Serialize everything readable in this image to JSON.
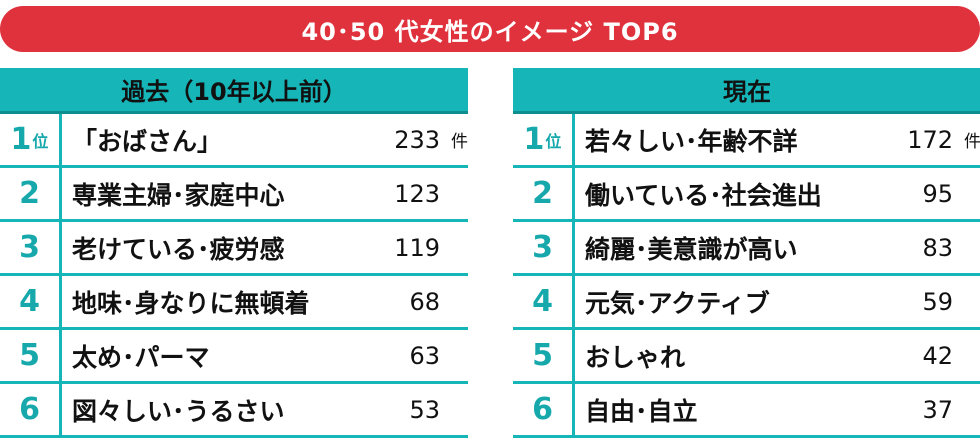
{
  "title": "40･50 代女性のイメージ TOP6",
  "chart_data": [
    {
      "type": "table",
      "title": "過去（10年以上前）",
      "rank_suffix": "位",
      "unit": "件",
      "categories": [
        "「おばさん」",
        "専業主婦･家庭中心",
        "老けている･疲労感",
        "地味･身なりに無頓着",
        "太め･パーマ",
        "図々しい･うるさい"
      ],
      "ranks": [
        "1",
        "2",
        "3",
        "4",
        "5",
        "6"
      ],
      "values": [
        233,
        123,
        119,
        68,
        63,
        53
      ]
    },
    {
      "type": "table",
      "title": "現在",
      "rank_suffix": "位",
      "unit": "件",
      "categories": [
        "若々しい･年齢不詳",
        "働いている･社会進出",
        "綺麗･美意識が高い",
        "元気･アクティブ",
        "おしゃれ",
        "自由･自立"
      ],
      "ranks": [
        "1",
        "2",
        "3",
        "4",
        "5",
        "6"
      ],
      "values": [
        172,
        95,
        83,
        59,
        42,
        37
      ]
    }
  ]
}
